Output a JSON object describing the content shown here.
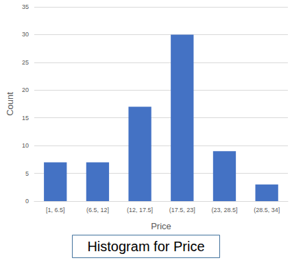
{
  "chart_data": {
    "type": "bar",
    "title": "Histogram for Price",
    "x_label": "Price",
    "y_label": "Count",
    "categories": [
      "[1, 6.5]",
      "(6.5, 12]",
      "(12, 17.5]",
      "(17.5, 23]",
      "(23, 28.5]",
      "(28.5, 34]"
    ],
    "values": [
      7,
      7,
      17,
      30,
      9,
      3
    ],
    "color": "#4472c4",
    "ylim": [
      0,
      35
    ],
    "yticks": [
      0,
      5,
      10,
      15,
      20,
      25,
      30,
      35
    ],
    "grid": true
  }
}
